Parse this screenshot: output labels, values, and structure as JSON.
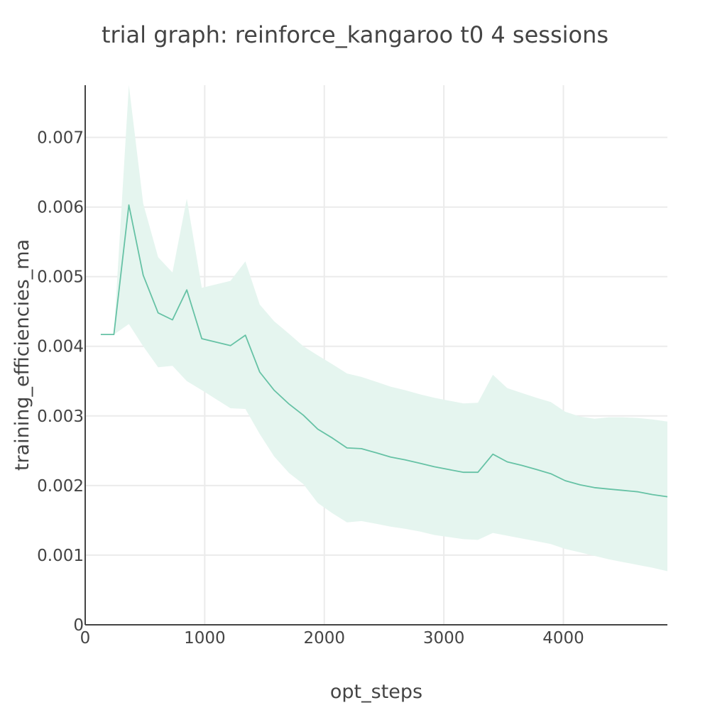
{
  "chart_data": {
    "type": "line",
    "title": "trial graph: reinforce_kangaroo t0 4 sessions",
    "xlabel": "opt_steps",
    "ylabel": "training_efficiencies_ma",
    "xlim": [
      0,
      4870
    ],
    "ylim": [
      0,
      0.00775
    ],
    "x_ticks": [
      0,
      1000,
      2000,
      3000,
      4000
    ],
    "x_tick_labels": [
      "0",
      "1000",
      "2000",
      "3000",
      "4000"
    ],
    "y_ticks": [
      0,
      0.001,
      0.002,
      0.003,
      0.004,
      0.005,
      0.006,
      0.007
    ],
    "y_tick_labels": [
      "0",
      "0.001",
      "0.002",
      "0.003",
      "0.004",
      "0.005",
      "0.006",
      "0.007"
    ],
    "grid": true,
    "legend": "none",
    "colors": {
      "line": "#66c2a5",
      "band": "#e5f5ef",
      "axis": "#444444",
      "grid": "#ebebeb",
      "text": "#444444"
    },
    "series": [
      {
        "x": [
          130,
          240,
          365,
          485,
          610,
          730,
          850,
          975,
          1215,
          1340,
          1460,
          1580,
          1705,
          1825,
          1945,
          2070,
          2190,
          2310,
          2435,
          2555,
          2675,
          2800,
          2920,
          3040,
          3165,
          3285,
          3410,
          3530,
          3650,
          3775,
          3895,
          4015,
          4140,
          4260,
          4380,
          4500,
          4625,
          4745,
          4870
        ],
        "values": [
          0.00417,
          0.00417,
          0.00603,
          0.00502,
          0.00448,
          0.00438,
          0.00481,
          0.00411,
          0.00401,
          0.00416,
          0.00363,
          0.00337,
          0.00317,
          0.00301,
          0.00281,
          0.00268,
          0.00254,
          0.00253,
          0.00247,
          0.00241,
          0.00237,
          0.00232,
          0.00227,
          0.00223,
          0.00219,
          0.00219,
          0.00245,
          0.00234,
          0.00229,
          0.00223,
          0.00217,
          0.00207,
          0.00201,
          0.00197,
          0.00195,
          0.00193,
          0.00191,
          0.00187,
          0.00184
        ],
        "lower": [
          0.00417,
          0.00417,
          0.00432,
          0.004,
          0.0037,
          0.00372,
          0.0035,
          0.00337,
          0.00311,
          0.0031,
          0.00274,
          0.00242,
          0.00218,
          0.00202,
          0.00175,
          0.0016,
          0.00147,
          0.00149,
          0.00145,
          0.00141,
          0.00138,
          0.00134,
          0.00129,
          0.00126,
          0.00123,
          0.00122,
          0.00132,
          0.00128,
          0.00124,
          0.0012,
          0.00116,
          0.00109,
          0.00104,
          0.00099,
          0.00094,
          0.0009,
          0.00086,
          0.00082,
          0.00077
        ],
        "upper": [
          0.00417,
          0.00417,
          0.00775,
          0.00605,
          0.00528,
          0.00506,
          0.00612,
          0.00484,
          0.00494,
          0.00522,
          0.0046,
          0.00436,
          0.00418,
          0.004,
          0.00387,
          0.00374,
          0.00361,
          0.00356,
          0.00349,
          0.00342,
          0.00337,
          0.00331,
          0.00326,
          0.00322,
          0.00318,
          0.00319,
          0.00359,
          0.0034,
          0.00333,
          0.00326,
          0.0032,
          0.00306,
          0.00299,
          0.00296,
          0.00298,
          0.00298,
          0.00297,
          0.00295,
          0.00292
        ]
      }
    ]
  }
}
